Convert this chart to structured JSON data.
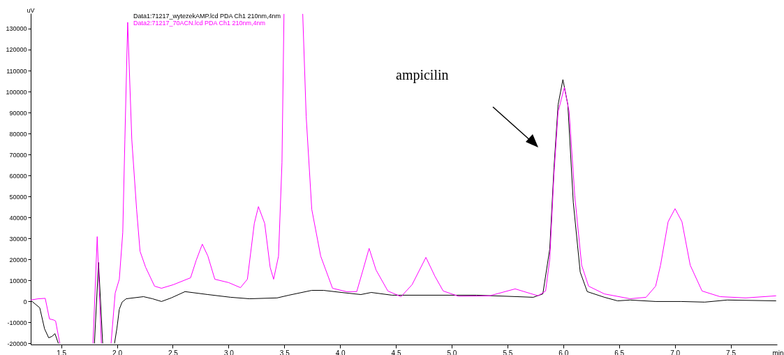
{
  "chart_data": {
    "type": "line",
    "xlabel": "min",
    "ylabel": "uV",
    "xlim": [
      1.227,
      7.916
    ],
    "ylim": [
      -20500,
      137300
    ],
    "xticks": [
      1.5,
      {
        "value": 2,
        "label": "2.0"
      },
      2.5,
      {
        "value": 3,
        "label": "3.0"
      },
      3.5,
      {
        "value": 4,
        "label": "4.0"
      },
      4.5,
      {
        "value": 5,
        "label": "5.0"
      },
      5.5,
      {
        "value": 6,
        "label": "6.0"
      },
      6.5,
      {
        "value": 7,
        "label": "7.0"
      },
      7.5
    ],
    "yticks": [
      -20000,
      -10000,
      0,
      10000,
      20000,
      30000,
      40000,
      50000,
      60000,
      70000,
      80000,
      90000,
      100000,
      110000,
      120000,
      130000
    ],
    "grid": false,
    "legend": "top left",
    "line_style": "solid",
    "marker": "none",
    "annotations": [
      "ampicilin"
    ],
    "series": [
      {
        "name": "Data1:71217_wytezekAMP.lcd PDA Ch1 210nm,4nm",
        "color": "#000000",
        "x": [
          1.227,
          1.24,
          1.308,
          1.351,
          1.388,
          1.419,
          1.444,
          1.475,
          1.6,
          1.798,
          1.835,
          1.872,
          1.92,
          1.978,
          2.0,
          2.021,
          2.046,
          2.083,
          2.238,
          2.319,
          2.399,
          2.486,
          2.61,
          2.815,
          3.02,
          3.187,
          3.435,
          3.541,
          3.746,
          3.851,
          4.012,
          4.186,
          4.279,
          4.465,
          5.222,
          5.588,
          5.731,
          5.817,
          5.879,
          5.917,
          5.954,
          5.997,
          6.041,
          6.09,
          6.152,
          6.215,
          6.369,
          6.487,
          6.599,
          6.828,
          7.057,
          7.269,
          7.47,
          7.908
        ],
        "values": [
          0,
          0,
          -3000,
          -13000,
          -17300,
          -16600,
          -15300,
          -20000,
          null,
          -20000,
          18600,
          -20000,
          null,
          -20000,
          -12600,
          -3700,
          -300,
          1300,
          2300,
          1300,
          0,
          1700,
          4700,
          3300,
          2000,
          1300,
          1700,
          3000,
          5300,
          5300,
          4300,
          3300,
          4300,
          3000,
          3000,
          2300,
          2000,
          3600,
          25000,
          63800,
          93800,
          105700,
          93800,
          47200,
          14000,
          4700,
          2000,
          300,
          700,
          0,
          0,
          -300,
          700,
          300
        ]
      },
      {
        "name": "Data2:71217_70ACN.lcd PDA Ch1 210nm,4nm",
        "color": "#ff00ff",
        "x": [
          1.227,
          1.295,
          1.357,
          1.395,
          1.432,
          1.45,
          1.488,
          1.6,
          1.785,
          1.823,
          1.86,
          1.9,
          1.947,
          1.984,
          2.021,
          2.052,
          2.071,
          2.096,
          2.133,
          2.176,
          2.207,
          2.257,
          2.337,
          2.399,
          2.505,
          2.66,
          2.71,
          2.765,
          2.815,
          2.877,
          3.001,
          3.107,
          3.169,
          3.231,
          3.268,
          3.324,
          3.373,
          3.404,
          3.448,
          3.479,
          3.497,
          3.58,
          3.665,
          3.696,
          3.746,
          3.826,
          3.932,
          4.056,
          4.149,
          4.205,
          4.26,
          4.322,
          4.428,
          4.546,
          4.645,
          4.769,
          4.85,
          4.924,
          5.061,
          5.34,
          5.569,
          5.774,
          5.842,
          5.879,
          5.917,
          5.954,
          6.01,
          6.053,
          6.103,
          6.165,
          6.227,
          6.369,
          6.599,
          6.742,
          6.828,
          6.872,
          6.94,
          7.002,
          7.064,
          7.138,
          7.244,
          7.405,
          7.635,
          7.908
        ],
        "values": [
          700,
          1300,
          1500,
          -8300,
          -8800,
          -9300,
          -20000,
          null,
          -20000,
          30900,
          -20000,
          null,
          -20000,
          4000,
          10600,
          32900,
          77100,
          133000,
          77100,
          43900,
          23900,
          16300,
          7300,
          6300,
          8000,
          11300,
          19600,
          27300,
          21600,
          10600,
          9000,
          6600,
          10600,
          37200,
          45200,
          37200,
          16300,
          10600,
          21600,
          66200,
          137000,
          null,
          137000,
          88100,
          43900,
          21600,
          6300,
          4700,
          4700,
          15000,
          25300,
          15000,
          5000,
          2300,
          8000,
          21000,
          12000,
          5000,
          2500,
          2700,
          6000,
          2700,
          5000,
          20000,
          60500,
          90400,
          102000,
          90400,
          50500,
          17300,
          7300,
          3600,
          1300,
          2000,
          7300,
          17300,
          38000,
          44200,
          38000,
          17300,
          5000,
          2300,
          1700,
          2700
        ]
      }
    ]
  }
}
